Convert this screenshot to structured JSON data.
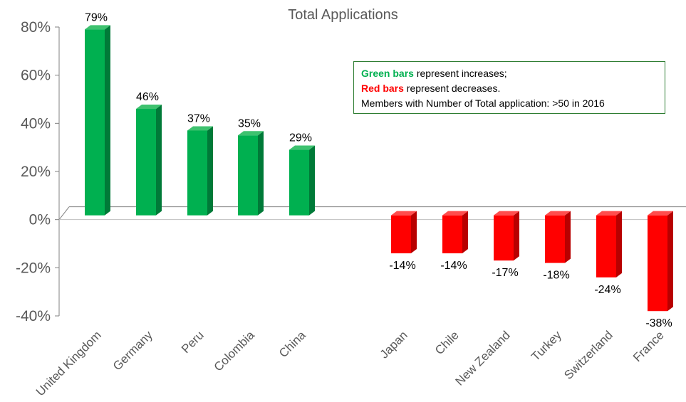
{
  "chart_data": {
    "type": "bar",
    "title": "Total Applications",
    "categories": [
      "United Kingdom",
      "Germany",
      "Peru",
      "Colombia",
      "China",
      "Japan",
      "Chile",
      "New Zealand",
      "Turkey",
      "Switzerland",
      "France"
    ],
    "values": [
      79,
      46,
      37,
      35,
      29,
      -14,
      -14,
      -17,
      -18,
      -24,
      -38
    ],
    "data_labels": [
      "79%",
      "46%",
      "37%",
      "35%",
      "29%",
      "-14%",
      "-14%",
      "-17%",
      "-18%",
      "-24%",
      "-38%"
    ],
    "ylim": [
      -40,
      80
    ],
    "yticks": [
      80,
      60,
      40,
      20,
      0,
      -20,
      -40
    ],
    "ytick_labels": [
      "80%",
      "60%",
      "40%",
      "20%",
      "0%",
      "-20%",
      "-40%"
    ],
    "xlabel": "",
    "ylabel": "",
    "grid": false,
    "colors": {
      "increase_front": "#00b050",
      "increase_side": "#007a38",
      "increase_top": "#3ec26f",
      "decrease_front": "#ff0000",
      "decrease_side": "#b80000",
      "decrease_top": "#ff4d4d",
      "axis": "#808080",
      "tick_text": "#595959"
    }
  },
  "legend": {
    "line1_strong": "Green bars",
    "line1_rest": " represent increases;",
    "line2_strong": "Red bars",
    "line2_rest": " represent decreases.",
    "line3": "Members with Number of Total application: >50 in 2016"
  }
}
